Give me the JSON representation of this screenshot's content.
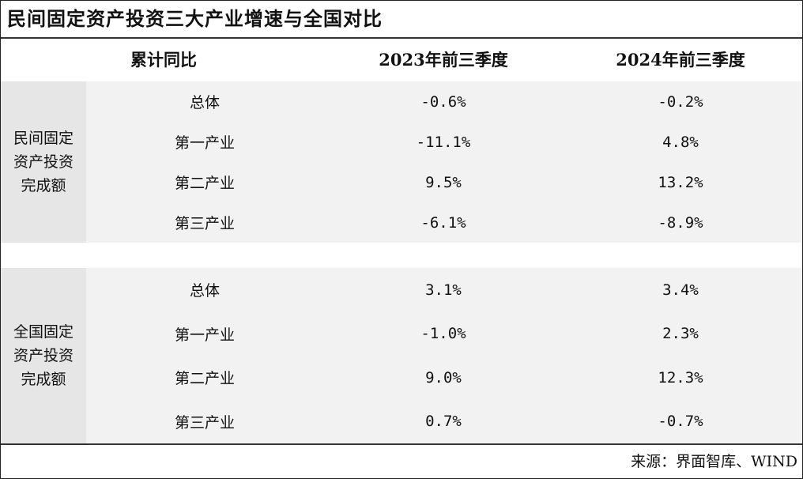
{
  "title": "民间固定资产投资三大产业增速与全国对比",
  "header": {
    "metric": "累计同比",
    "col1": "2023年前三季度",
    "col2": "2024年前三季度"
  },
  "groups": [
    {
      "label": "民间固定\n资产投资\n完成额",
      "rows": [
        {
          "name": "总体",
          "v2023": "-0.6%",
          "v2024": "-0.2%"
        },
        {
          "name": "第一产业",
          "v2023": "-11.1%",
          "v2024": "4.8%"
        },
        {
          "name": "第二产业",
          "v2023": "9.5%",
          "v2024": "13.2%"
        },
        {
          "name": "第三产业",
          "v2023": "-6.1%",
          "v2024": "-8.9%"
        }
      ]
    },
    {
      "label": "全国固定\n资产投资\n完成额",
      "rows": [
        {
          "name": "总体",
          "v2023": "3.1%",
          "v2024": "3.4%"
        },
        {
          "name": "第一产业",
          "v2023": "-1.0%",
          "v2024": "2.3%"
        },
        {
          "name": "第二产业",
          "v2023": "9.0%",
          "v2024": "12.3%"
        },
        {
          "name": "第三产业",
          "v2023": "0.7%",
          "v2024": "-0.7%"
        }
      ]
    }
  ],
  "source": "来源：界面智库、WIND"
}
